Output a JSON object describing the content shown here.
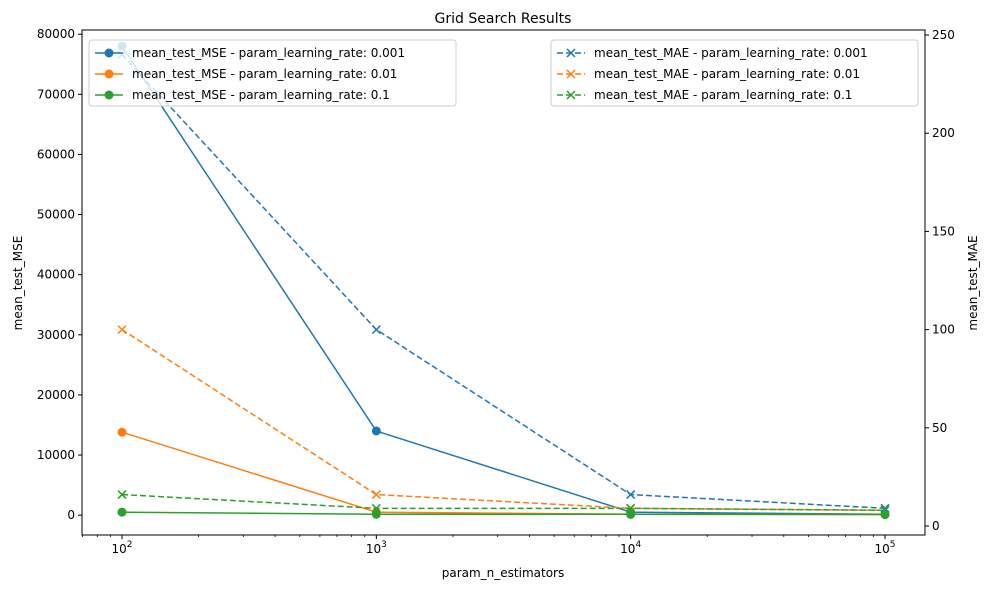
{
  "chart_data": {
    "type": "line",
    "title": "Grid Search Results",
    "xlabel": "param_n_estimators",
    "ylabel_left": "mean_test_MSE",
    "ylabel_right": "mean_test_MAE",
    "x_scale": "log",
    "x": [
      100,
      1000,
      10000,
      100000
    ],
    "x_tick_labels": [
      {
        "base": "10",
        "exp": "2"
      },
      {
        "base": "10",
        "exp": "3"
      },
      {
        "base": "10",
        "exp": "4"
      },
      {
        "base": "10",
        "exp": "5"
      }
    ],
    "ylim_left": [
      -3300,
      80700
    ],
    "yticks_left": [
      0,
      10000,
      20000,
      30000,
      40000,
      50000,
      60000,
      70000,
      80000
    ],
    "ylim_right": [
      0,
      250
    ],
    "yticks_right": [
      0,
      50,
      100,
      150,
      200,
      250
    ],
    "grid": false,
    "legend_left_position": "top-left",
    "legend_right_position": "top-right",
    "series_left": [
      {
        "name": "mean_test_MSE - param_learning_rate: 0.001",
        "color": "#1f77b4",
        "marker": "circle",
        "linestyle": "solid",
        "values": [
          78000,
          14000,
          500,
          150
        ]
      },
      {
        "name": "mean_test_MSE - param_learning_rate: 0.01",
        "color": "#ff7f0e",
        "marker": "circle",
        "linestyle": "solid",
        "values": [
          13800,
          500,
          150,
          100
        ]
      },
      {
        "name": "mean_test_MSE - param_learning_rate: 0.1",
        "color": "#2ca02c",
        "marker": "circle",
        "linestyle": "solid",
        "values": [
          500,
          150,
          150,
          100
        ]
      }
    ],
    "series_right": [
      {
        "name": "mean_test_MAE - param_learning_rate: 0.001",
        "color": "#1f77b4",
        "marker": "x",
        "linestyle": "dashed",
        "values": [
          240,
          100,
          16,
          9
        ]
      },
      {
        "name": "mean_test_MAE - param_learning_rate: 0.01",
        "color": "#ff7f0e",
        "marker": "x",
        "linestyle": "dashed",
        "values": [
          100,
          16,
          9,
          8
        ]
      },
      {
        "name": "mean_test_MAE - param_learning_rate: 0.1",
        "color": "#2ca02c",
        "marker": "x",
        "linestyle": "dashed",
        "values": [
          16,
          9,
          9,
          8
        ]
      }
    ]
  }
}
